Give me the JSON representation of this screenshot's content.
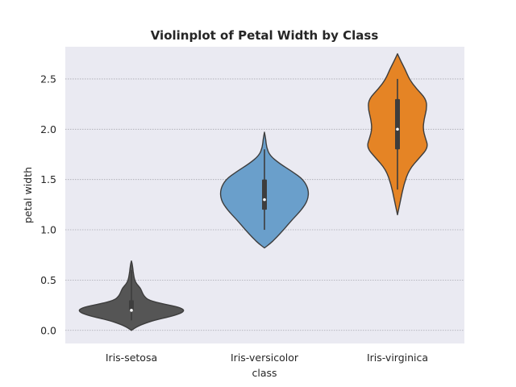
{
  "chart_data": {
    "type": "violin",
    "title": "Violinplot of Petal Width by Class",
    "xlabel": "class",
    "ylabel": "petal width",
    "ylim": [
      -0.13,
      2.82
    ],
    "yticks": [
      0.0,
      0.5,
      1.0,
      1.5,
      2.0,
      2.5
    ],
    "ytick_labels": [
      "0.0",
      "0.5",
      "1.0",
      "1.5",
      "2.0",
      "2.5"
    ],
    "grid": true,
    "background": "#eaeaf2",
    "categories": [
      "Iris-setosa",
      "Iris-versicolor",
      "Iris-virginica"
    ],
    "series": [
      {
        "category": "Iris-setosa",
        "color": "#555555",
        "min": 0.1,
        "q1": 0.2,
        "median": 0.2,
        "q3": 0.3,
        "max": 0.6,
        "density": [
          [
            0.0,
            0.0
          ],
          [
            0.03,
            0.08
          ],
          [
            0.06,
            0.2
          ],
          [
            0.1,
            0.42
          ],
          [
            0.14,
            0.75
          ],
          [
            0.17,
            0.93
          ],
          [
            0.2,
            1.0
          ],
          [
            0.23,
            0.9
          ],
          [
            0.26,
            0.62
          ],
          [
            0.3,
            0.32
          ],
          [
            0.34,
            0.24
          ],
          [
            0.38,
            0.2
          ],
          [
            0.42,
            0.17
          ],
          [
            0.46,
            0.1
          ],
          [
            0.5,
            0.06
          ],
          [
            0.56,
            0.04
          ],
          [
            0.62,
            0.025
          ],
          [
            0.66,
            0.015
          ],
          [
            0.69,
            0.0
          ]
        ]
      },
      {
        "category": "Iris-versicolor",
        "color": "#6a9fcb",
        "min": 1.0,
        "q1": 1.2,
        "median": 1.3,
        "q3": 1.5,
        "max": 1.8,
        "density": [
          [
            0.82,
            0.0
          ],
          [
            0.86,
            0.1
          ],
          [
            0.92,
            0.22
          ],
          [
            1.0,
            0.36
          ],
          [
            1.1,
            0.52
          ],
          [
            1.2,
            0.7
          ],
          [
            1.3,
            0.82
          ],
          [
            1.4,
            0.83
          ],
          [
            1.5,
            0.73
          ],
          [
            1.58,
            0.52
          ],
          [
            1.66,
            0.28
          ],
          [
            1.74,
            0.1
          ],
          [
            1.82,
            0.04
          ],
          [
            1.9,
            0.025
          ],
          [
            1.97,
            0.0
          ]
        ]
      },
      {
        "category": "Iris-virginica",
        "color": "#e58425",
        "min": 1.4,
        "q1": 1.8,
        "median": 2.0,
        "q3": 2.3,
        "max": 2.5,
        "density": [
          [
            1.15,
            0.0
          ],
          [
            1.3,
            0.06
          ],
          [
            1.45,
            0.12
          ],
          [
            1.6,
            0.22
          ],
          [
            1.72,
            0.42
          ],
          [
            1.82,
            0.58
          ],
          [
            1.92,
            0.52
          ],
          [
            2.0,
            0.48
          ],
          [
            2.1,
            0.5
          ],
          [
            2.2,
            0.55
          ],
          [
            2.3,
            0.54
          ],
          [
            2.4,
            0.36
          ],
          [
            2.5,
            0.22
          ],
          [
            2.6,
            0.14
          ],
          [
            2.68,
            0.06
          ],
          [
            2.75,
            0.0
          ]
        ]
      }
    ]
  }
}
